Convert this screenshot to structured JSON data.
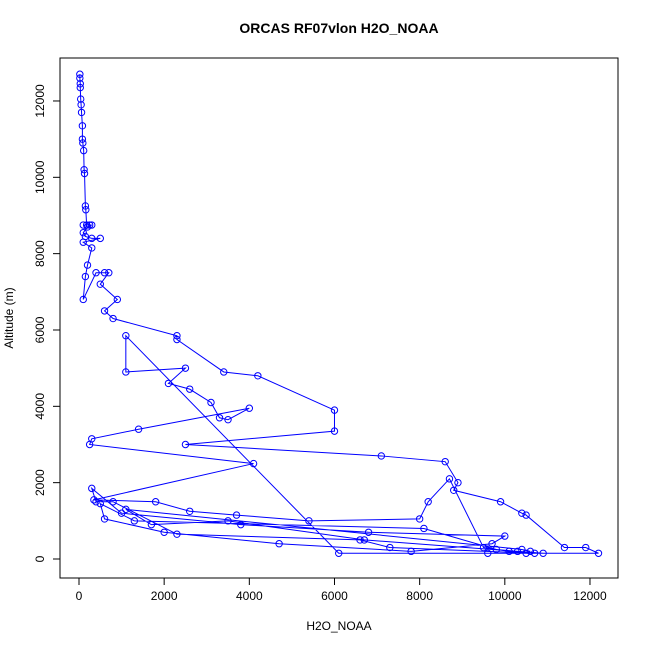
{
  "chart_data": {
    "type": "line",
    "title": "ORCAS RF07vlon H2O_NOAA",
    "x_label": "H2O_NOAA",
    "y_label": "Altitude (m)",
    "color": "#0000ff",
    "markers": true,
    "x": [
      20,
      20,
      30,
      30,
      40,
      50,
      60,
      80,
      80,
      90,
      110,
      120,
      130,
      150,
      160,
      180,
      100,
      250,
      300,
      200,
      100,
      150,
      300,
      500,
      100,
      300,
      200,
      150,
      100,
      400,
      600,
      700,
      500,
      900,
      600,
      800,
      2300,
      2300,
      3400,
      4200,
      6000,
      6000,
      2500,
      7100,
      8600,
      8900,
      8800,
      9900,
      10400,
      10500,
      11400,
      11900,
      12200,
      10500,
      9600,
      6100,
      1100,
      1100,
      2500,
      2100,
      2600,
      3100,
      3300,
      3500,
      4000,
      1400,
      300,
      250,
      4100,
      350,
      1800,
      2600,
      3700,
      5400,
      8000,
      8200,
      8700,
      9500,
      10100,
      10700,
      7300,
      6600,
      2300,
      800,
      400,
      300,
      1000,
      3800,
      6800,
      10000,
      9700,
      7800,
      4700,
      2000,
      600,
      500,
      1300,
      8100,
      9800,
      10300,
      10900,
      6700,
      3500,
      1700,
      1100,
      10400,
      10600
    ],
    "values": [
      12700,
      12600,
      12450,
      12350,
      12050,
      11900,
      11700,
      11350,
      11000,
      10900,
      10700,
      10200,
      10100,
      9250,
      9150,
      8750,
      8750,
      8750,
      8750,
      8700,
      8550,
      8450,
      8400,
      8400,
      8300,
      8150,
      7700,
      7400,
      6800,
      7500,
      7500,
      7500,
      7200,
      6800,
      6500,
      6300,
      5850,
      5750,
      4900,
      4800,
      3900,
      3350,
      3000,
      2700,
      2550,
      2000,
      1800,
      1500,
      1200,
      1150,
      300,
      300,
      150,
      150,
      150,
      150,
      5850,
      4900,
      5000,
      4600,
      4450,
      4100,
      3700,
      3650,
      3950,
      3400,
      3150,
      3000,
      2500,
      1550,
      1500,
      1250,
      1150,
      1000,
      1050,
      1500,
      2100,
      300,
      200,
      150,
      300,
      500,
      650,
      1500,
      1500,
      1850,
      1200,
      900,
      700,
      600,
      400,
      200,
      400,
      700,
      1050,
      1450,
      1000,
      800,
      250,
      200,
      150,
      500,
      1000,
      900,
      1300,
      250,
      200
    ],
    "xlim": [
      -446,
      12658
    ],
    "ylim": [
      -498,
      13126
    ],
    "xticks": [
      0,
      2000,
      4000,
      6000,
      8000,
      10000,
      12000
    ],
    "yticks": [
      0,
      2000,
      4000,
      6000,
      8000,
      10000,
      12000
    ]
  }
}
